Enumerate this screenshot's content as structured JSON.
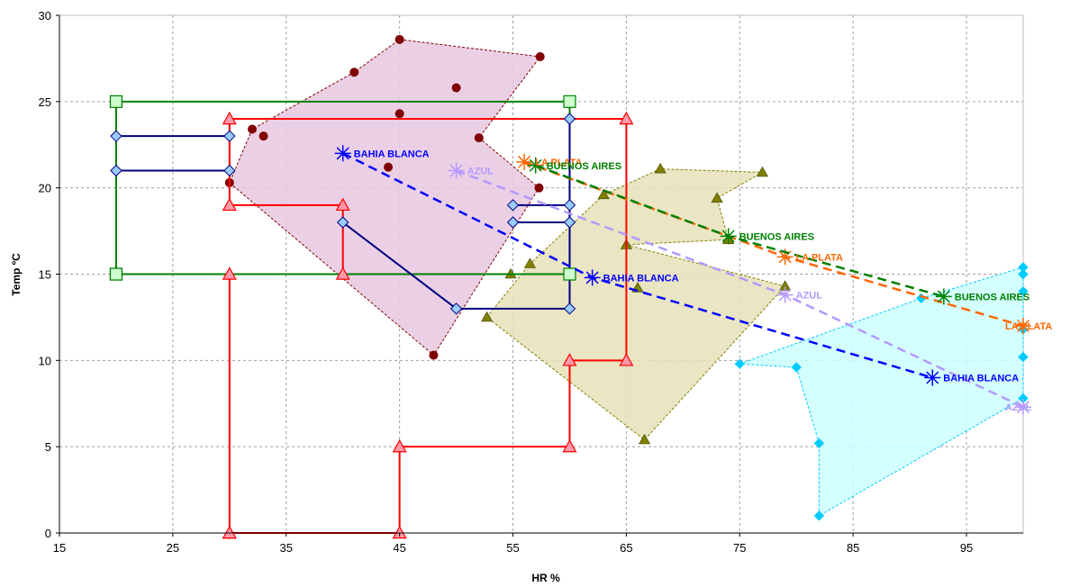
{
  "chart_data": {
    "type": "scatter",
    "xlabel": "HR %",
    "ylabel": "Temp ºC",
    "xlim": [
      15,
      100
    ],
    "ylim": [
      0,
      30
    ],
    "xticks": [
      15,
      25,
      35,
      45,
      55,
      65,
      75,
      85,
      95
    ],
    "yticks": [
      0,
      5,
      10,
      15,
      20,
      25,
      30
    ],
    "grid": true,
    "colors": {
      "dark_red": "#800000",
      "olive": "#808000",
      "cyan": "#00ccff",
      "cyan_fill": "#ccffff",
      "pink_fill": "#e8c8e0",
      "olive_fill": "#e6e0b8",
      "red": "#ff0000",
      "green": "#008000",
      "navy": "#000080",
      "diamond": "#99ccff",
      "blue": "#0000ff",
      "orange": "#ff6600",
      "lavender": "#b399ff"
    },
    "regions": [
      {
        "color": "#800000",
        "fill": "#e8c8e0",
        "marker": "circle",
        "points": [
          [
            45,
            28.6
          ],
          [
            57.4,
            27.6
          ],
          [
            41,
            26.7
          ],
          [
            50,
            25.8
          ],
          [
            45,
            24.3
          ],
          [
            32,
            23.4
          ],
          [
            33,
            23
          ],
          [
            52,
            22.9
          ],
          [
            44,
            21.2
          ],
          [
            30,
            20.3
          ],
          [
            57.3,
            20
          ],
          [
            48,
            10.3
          ]
        ],
        "hull": [
          [
            45,
            28.6
          ],
          [
            57.4,
            27.6
          ],
          [
            52,
            22.9
          ],
          [
            57.3,
            20
          ],
          [
            48,
            10.3
          ],
          [
            30,
            20.3
          ],
          [
            32,
            23.4
          ],
          [
            41,
            26.7
          ]
        ]
      },
      {
        "color": "#808000",
        "fill": "#e6e0b8",
        "marker": "triangle",
        "points": [
          [
            68,
            21.1
          ],
          [
            77,
            20.9
          ],
          [
            73,
            19.4
          ],
          [
            63,
            19.6
          ],
          [
            74,
            17
          ],
          [
            65,
            16.7
          ],
          [
            56.5,
            15.6
          ],
          [
            54.8,
            15
          ],
          [
            66,
            14.2
          ],
          [
            79,
            14.3
          ],
          [
            52.7,
            12.5
          ],
          [
            66.6,
            5.4
          ]
        ],
        "hull": [
          [
            52.7,
            12.5
          ],
          [
            56.5,
            15.6
          ],
          [
            63,
            19.6
          ],
          [
            68,
            21.1
          ],
          [
            77,
            20.9
          ],
          [
            73,
            19.4
          ],
          [
            74,
            17
          ],
          [
            65,
            16.7
          ],
          [
            79,
            14.3
          ],
          [
            66.6,
            5.4
          ]
        ]
      },
      {
        "color": "#00ccff",
        "fill": "#ccffff",
        "marker": "diamond-small",
        "points": [
          [
            100,
            15.4
          ],
          [
            100,
            15
          ],
          [
            91,
            13.6
          ],
          [
            100,
            14
          ],
          [
            100,
            11.8
          ],
          [
            100,
            10.2
          ],
          [
            75,
            9.8
          ],
          [
            80,
            9.6
          ],
          [
            100,
            7.8
          ],
          [
            82,
            5.2
          ],
          [
            82,
            1
          ]
        ],
        "hull": [
          [
            75,
            9.8
          ],
          [
            91,
            13.6
          ],
          [
            100,
            15.4
          ],
          [
            100,
            7.8
          ],
          [
            82,
            1
          ],
          [
            82,
            5.2
          ],
          [
            80,
            9.6
          ]
        ]
      }
    ],
    "step_lines": [
      {
        "color": "#ff0000",
        "marker": "triangle",
        "points": [
          [
            30,
            0
          ],
          [
            45,
            0
          ],
          [
            45,
            5
          ],
          [
            60,
            5
          ],
          [
            60,
            10
          ],
          [
            65,
            10
          ],
          [
            65,
            24
          ],
          [
            30,
            24
          ],
          [
            30,
            19
          ],
          [
            40,
            19
          ],
          [
            40,
            15
          ],
          [
            30,
            15
          ],
          [
            30,
            0
          ]
        ]
      },
      {
        "color": "#008000",
        "marker": "square",
        "points": [
          [
            20,
            15
          ],
          [
            20,
            25
          ],
          [
            60,
            25
          ],
          [
            60,
            15
          ],
          [
            20,
            15
          ]
        ]
      },
      {
        "color": "#000080",
        "marker": "diamond",
        "segments": [
          [
            [
              20,
              23
            ],
            [
              30,
              23
            ]
          ],
          [
            [
              20,
              21
            ],
            [
              30,
              21
            ]
          ],
          [
            [
              55,
              19
            ],
            [
              60,
              19
            ],
            [
              60,
              13
            ],
            [
              50,
              13
            ],
            [
              40,
              18
            ]
          ],
          [
            [
              55,
              18
            ],
            [
              60,
              18
            ]
          ],
          [
            [
              60,
              24
            ],
            [
              60,
              13
            ]
          ]
        ],
        "markers": [
          [
            20,
            23
          ],
          [
            30,
            23
          ],
          [
            20,
            21
          ],
          [
            30,
            21
          ],
          [
            60,
            24
          ],
          [
            55,
            19
          ],
          [
            60,
            19
          ],
          [
            55,
            18
          ],
          [
            60,
            18
          ],
          [
            60,
            13
          ],
          [
            50,
            13
          ],
          [
            40,
            18
          ]
        ]
      }
    ],
    "series": [
      {
        "name": "BAHIA BLANCA",
        "color": "#0000ff",
        "points": [
          [
            40,
            22
          ],
          [
            62,
            14.8
          ],
          [
            92,
            9
          ]
        ]
      },
      {
        "name": "LA PLATA",
        "color": "#ff6600",
        "points": [
          [
            56,
            21.5
          ],
          [
            79,
            16
          ],
          [
            100,
            12
          ]
        ]
      },
      {
        "name": "BUENOS AIRES",
        "color": "#008000",
        "points": [
          [
            57,
            21.3
          ],
          [
            74,
            17.2
          ],
          [
            93,
            13.7
          ]
        ]
      },
      {
        "name": "AZUL",
        "color": "#b399ff",
        "points": [
          [
            50,
            21
          ],
          [
            79,
            13.8
          ],
          [
            100,
            7.3
          ]
        ]
      }
    ],
    "labels": [
      {
        "text": "BAHIA BLANCA",
        "x": 40,
        "y": 22,
        "color": "#0000ff"
      },
      {
        "text": "BAHIA BLANCA",
        "x": 62,
        "y": 14.8,
        "color": "#0000ff"
      },
      {
        "text": "BAHIA BLANCA",
        "x": 92,
        "y": 9,
        "color": "#0000ff"
      },
      {
        "text": "LA PLATA",
        "x": 56,
        "y": 21.5,
        "color": "#ff6600"
      },
      {
        "text": "LA PLATA",
        "x": 79,
        "y": 16,
        "color": "#ff6600"
      },
      {
        "text": "LA PLATA",
        "x": 100,
        "y": 12,
        "color": "#ff6600"
      },
      {
        "text": "BUENOS AIRES",
        "x": 57,
        "y": 21.3,
        "color": "#008000"
      },
      {
        "text": "BUENOS AIRES",
        "x": 74,
        "y": 17.2,
        "color": "#008000"
      },
      {
        "text": "BUENOS AIRES",
        "x": 93,
        "y": 13.7,
        "color": "#008000"
      },
      {
        "text": "AZUL",
        "x": 50,
        "y": 21,
        "color": "#b399ff"
      },
      {
        "text": "AZUL",
        "x": 79,
        "y": 13.8,
        "color": "#b399ff"
      },
      {
        "text": "AZUL",
        "x": 100,
        "y": 7.3,
        "color": "#b399ff"
      }
    ]
  }
}
